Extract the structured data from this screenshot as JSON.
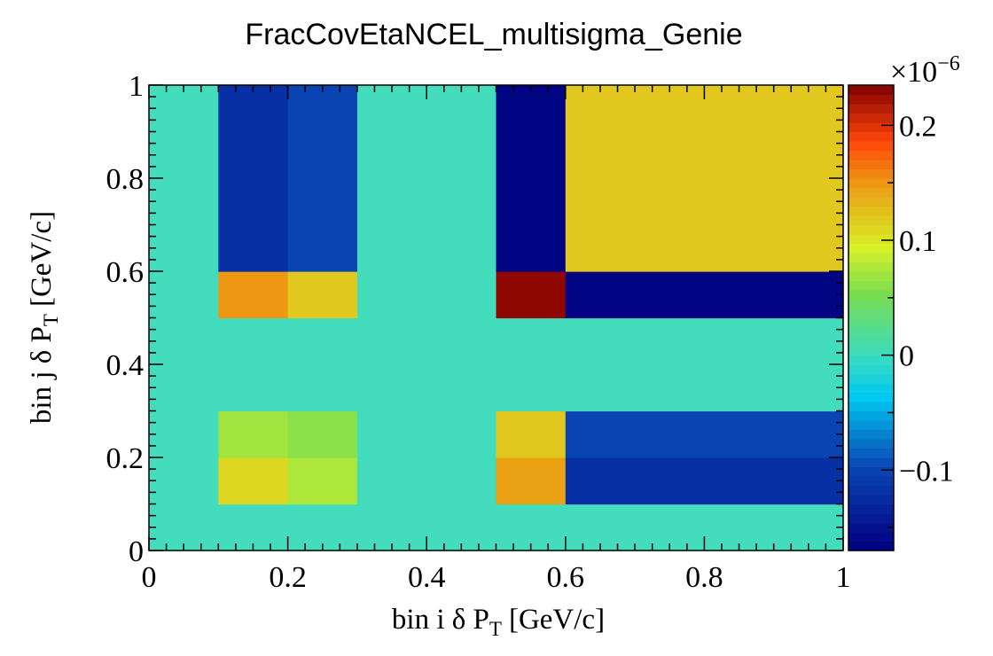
{
  "title": "FracCovEtaNCEL_multisigma_Genie",
  "chart_data": {
    "type": "heatmap",
    "title": "FracCovEtaNCEL_multisigma_Genie",
    "xlabel": {
      "main": "bin i δ P",
      "sub": "T",
      "unit": "[GeV/c]"
    },
    "ylabel": {
      "main": "bin j δ P",
      "sub": "T",
      "unit": "[GeV/c]"
    },
    "xlim": [
      0,
      1
    ],
    "ylim": [
      0,
      1
    ],
    "x_ticks": [
      "0",
      "0.2",
      "0.4",
      "0.6",
      "0.8",
      "1"
    ],
    "y_ticks": [
      "0",
      "0.2",
      "0.4",
      "0.6",
      "0.8",
      "1"
    ],
    "x_edges": [
      0,
      0.1,
      0.2,
      0.3,
      0.5,
      0.6,
      1.0
    ],
    "y_edges": [
      0,
      0.1,
      0.2,
      0.3,
      0.5,
      0.6,
      1.0
    ],
    "values": [
      [
        0,
        0,
        0,
        0,
        0,
        0
      ],
      [
        0,
        0.11,
        0.075,
        0,
        0.145,
        -0.12
      ],
      [
        0,
        0.07,
        0.06,
        0,
        0.12,
        -0.1
      ],
      [
        0,
        0,
        0,
        0,
        0,
        0
      ],
      [
        0,
        0.15,
        0.12,
        0,
        0.23,
        -0.165
      ],
      [
        0,
        -0.12,
        -0.1,
        0,
        -0.165,
        0.12
      ]
    ],
    "zlim": [
      -0.17,
      0.235
    ],
    "z_scale_label": "×10",
    "z_scale_exponent": "−6",
    "z_ticks": [
      {
        "value": 0.2,
        "label": "0.2"
      },
      {
        "value": 0.1,
        "label": "0.1"
      },
      {
        "value": 0,
        "label": "0"
      },
      {
        "value": -0.1,
        "label": "−0.1"
      }
    ],
    "colormap": "rainbow"
  }
}
